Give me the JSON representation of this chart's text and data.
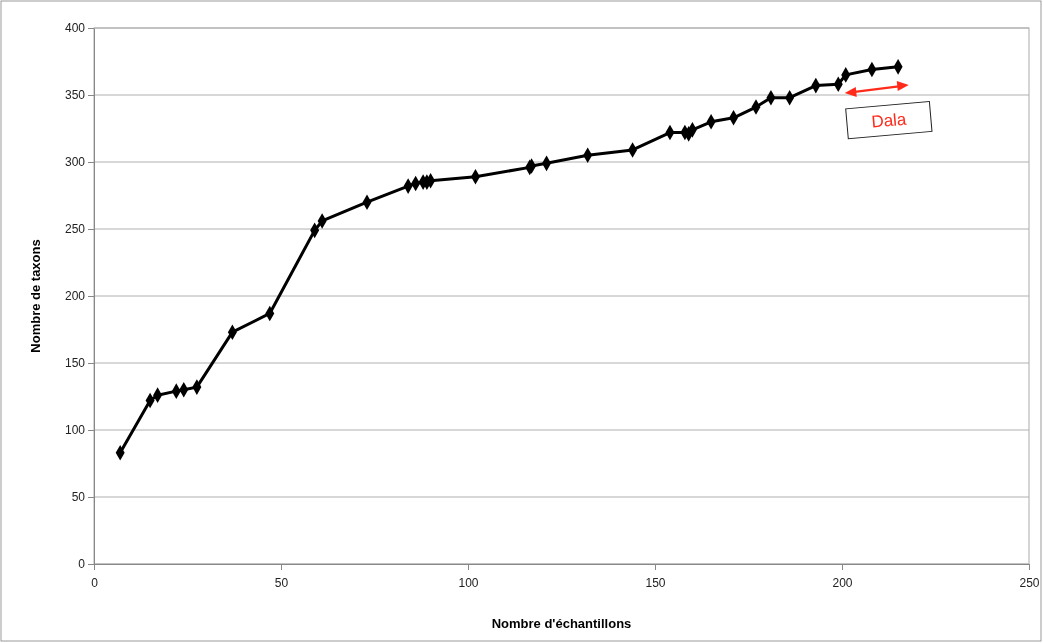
{
  "chart_data": {
    "type": "line",
    "xlabel": "Nombre d'échantillons",
    "ylabel": "Nombre de taxons",
    "xlim": [
      0,
      250
    ],
    "xticks": [
      0,
      50,
      100,
      150,
      200,
      250
    ],
    "ylim": [
      0,
      400
    ],
    "yticks": [
      0,
      50,
      100,
      150,
      200,
      250,
      300,
      350,
      400
    ],
    "grid": "y",
    "marker": "diamond",
    "line_style": "solid",
    "series": [
      {
        "color": "#000000",
        "x": [
          7,
          15,
          17,
          22,
          24,
          27.5,
          37,
          47,
          59,
          61,
          73,
          84,
          86,
          88,
          89,
          90,
          102,
          116.5,
          117,
          121,
          132,
          144,
          154,
          158,
          159,
          160,
          165,
          171,
          177,
          181,
          186,
          193,
          199,
          201,
          208,
          215
        ],
        "values": [
          83,
          122,
          126,
          129,
          130,
          132,
          173,
          187,
          249,
          256,
          270,
          282,
          284,
          285,
          285,
          286,
          289,
          296,
          297,
          299,
          305,
          309,
          322,
          322,
          321,
          324,
          330,
          333,
          341,
          348,
          348,
          357,
          358,
          365,
          369,
          371
        ]
      }
    ],
    "annotations": [
      "Dala"
    ]
  }
}
